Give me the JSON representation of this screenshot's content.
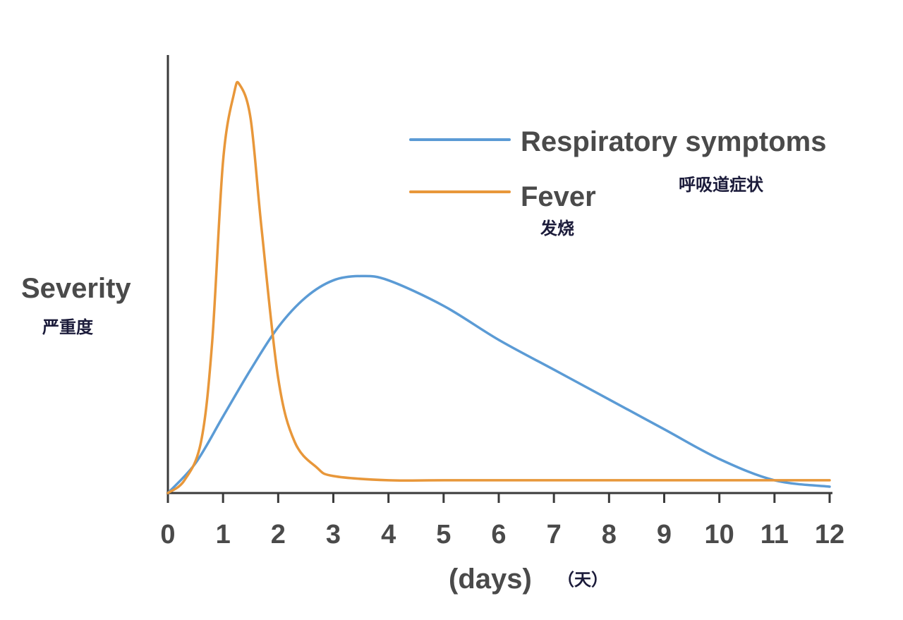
{
  "chart_data": {
    "type": "line",
    "xlabel": "(days)",
    "xlabel_cn": "（天）",
    "ylabel": "Severity",
    "ylabel_cn": "严重度",
    "xlim": [
      0,
      12
    ],
    "ylim": [
      0,
      1
    ],
    "x_ticks": [
      "0",
      "1",
      "2",
      "3",
      "4",
      "5",
      "6",
      "7",
      "8",
      "9",
      "10",
      "11",
      "12"
    ],
    "grid": false,
    "legend_position": "top-right",
    "series": [
      {
        "name": "Respiratory symptoms",
        "name_cn": "呼吸道症状",
        "color": "#5b9bd5",
        "points": [
          [
            0,
            0.0
          ],
          [
            0.5,
            0.07
          ],
          [
            1,
            0.18
          ],
          [
            1.5,
            0.29
          ],
          [
            2,
            0.39
          ],
          [
            2.5,
            0.46
          ],
          [
            3,
            0.5
          ],
          [
            3.5,
            0.51
          ],
          [
            4,
            0.5
          ],
          [
            5,
            0.44
          ],
          [
            6,
            0.36
          ],
          [
            7,
            0.29
          ],
          [
            8,
            0.22
          ],
          [
            9,
            0.15
          ],
          [
            10,
            0.08
          ],
          [
            11,
            0.03
          ],
          [
            12,
            0.015
          ]
        ]
      },
      {
        "name": "Fever",
        "name_cn": "发烧",
        "color": "#e8973a",
        "points": [
          [
            0,
            0.0
          ],
          [
            0.3,
            0.03
          ],
          [
            0.6,
            0.12
          ],
          [
            0.8,
            0.35
          ],
          [
            1.0,
            0.78
          ],
          [
            1.2,
            0.94
          ],
          [
            1.3,
            0.96
          ],
          [
            1.5,
            0.88
          ],
          [
            1.7,
            0.62
          ],
          [
            2.0,
            0.27
          ],
          [
            2.3,
            0.12
          ],
          [
            2.7,
            0.06
          ],
          [
            3.0,
            0.04
          ],
          [
            4.0,
            0.03
          ],
          [
            5.0,
            0.03
          ],
          [
            8.0,
            0.03
          ],
          [
            12.0,
            0.03
          ]
        ]
      }
    ]
  }
}
